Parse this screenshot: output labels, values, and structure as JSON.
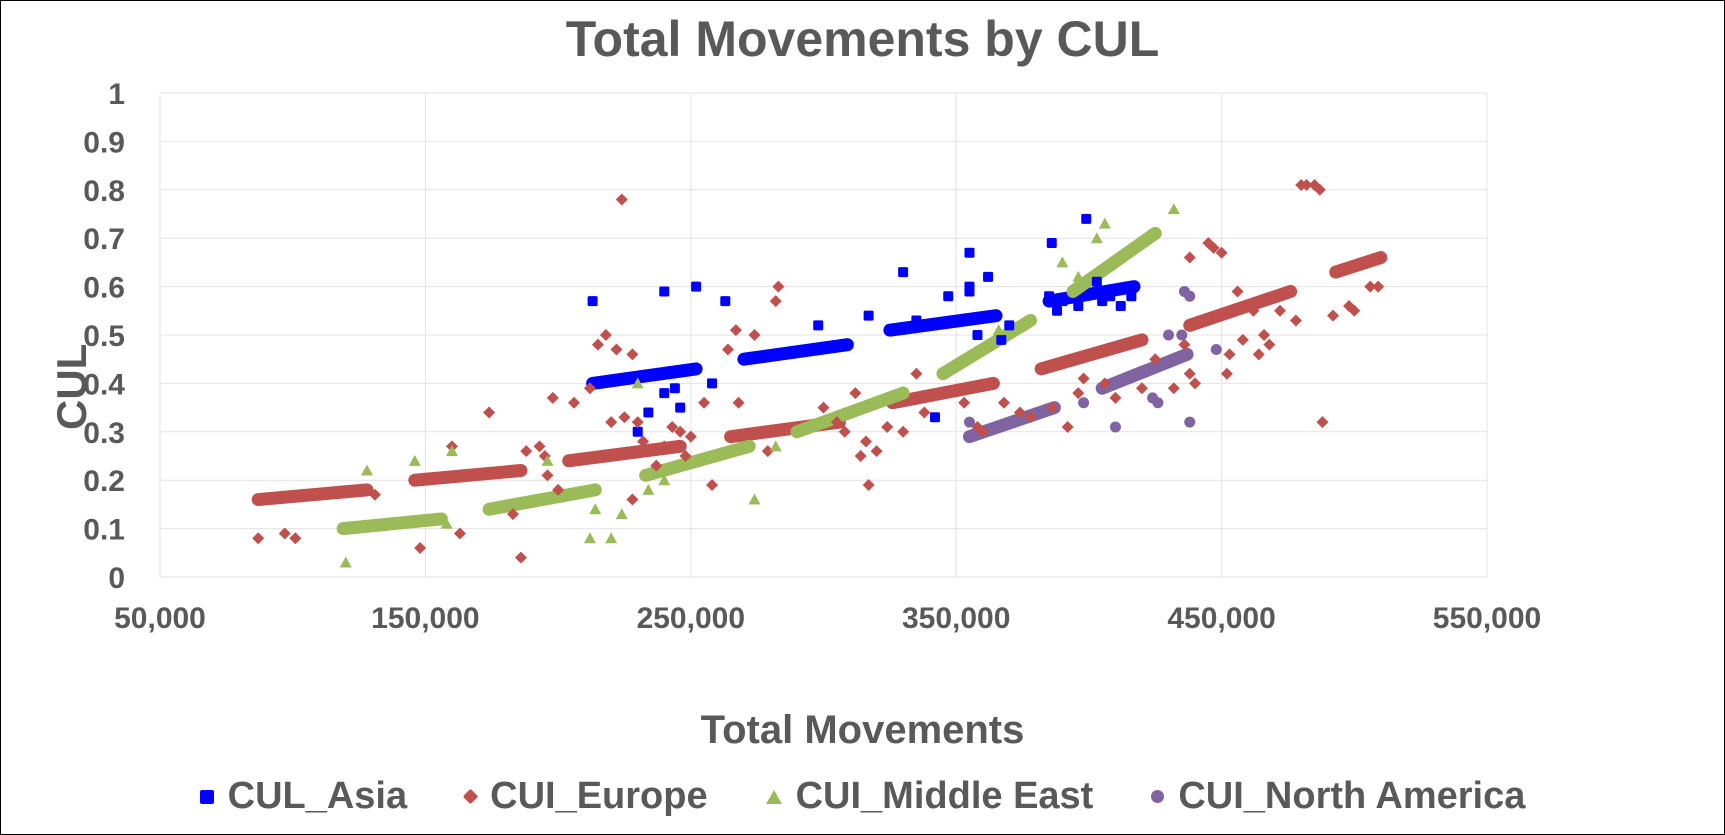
{
  "chart_data": {
    "type": "scatter",
    "title": "Total Movements by CUL",
    "xlabel": "Total Movements",
    "ylabel": "CUL",
    "xlim": [
      50000,
      550000
    ],
    "ylim": [
      0,
      1
    ],
    "x_ticks": [
      50000,
      150000,
      250000,
      350000,
      450000,
      550000
    ],
    "x_tick_labels": [
      "50,000",
      "150,000",
      "250,000",
      "350,000",
      "450,000",
      "550,000"
    ],
    "y_ticks": [
      0,
      0.1,
      0.2,
      0.3,
      0.4,
      0.5,
      0.6,
      0.7,
      0.8,
      0.9,
      1
    ],
    "y_tick_labels": [
      "0",
      "0.1",
      "0.2",
      "0.3",
      "0.4",
      "0.5",
      "0.6",
      "0.7",
      "0.8",
      "0.9",
      "1"
    ],
    "grid": true,
    "legend_position": "bottom",
    "series": [
      {
        "name": "CUL_Asia",
        "color": "#0000FF",
        "marker": "square",
        "points": [
          [
            213000,
            0.57
          ],
          [
            240000,
            0.59
          ],
          [
            252000,
            0.6
          ],
          [
            263000,
            0.57
          ],
          [
            230000,
            0.3
          ],
          [
            234000,
            0.34
          ],
          [
            240000,
            0.38
          ],
          [
            244000,
            0.39
          ],
          [
            246000,
            0.35
          ],
          [
            258000,
            0.4
          ],
          [
            298000,
            0.52
          ],
          [
            317000,
            0.54
          ],
          [
            330000,
            0.63
          ],
          [
            335000,
            0.53
          ],
          [
            342000,
            0.33
          ],
          [
            347000,
            0.58
          ],
          [
            355000,
            0.6
          ],
          [
            355000,
            0.59
          ],
          [
            355000,
            0.67
          ],
          [
            362000,
            0.62
          ],
          [
            358000,
            0.5
          ],
          [
            370000,
            0.52
          ],
          [
            367000,
            0.49
          ],
          [
            386000,
            0.69
          ],
          [
            385000,
            0.58
          ],
          [
            388000,
            0.55
          ],
          [
            390000,
            0.57
          ],
          [
            396000,
            0.56
          ],
          [
            399000,
            0.74
          ],
          [
            403000,
            0.61
          ],
          [
            405000,
            0.57
          ],
          [
            408000,
            0.58
          ],
          [
            412000,
            0.56
          ],
          [
            416000,
            0.58
          ]
        ],
        "trends": [
          [
            [
              213000,
              0.4
            ],
            [
              252000,
              0.43
            ]
          ],
          [
            [
              270000,
              0.45
            ],
            [
              309000,
              0.48
            ]
          ],
          [
            [
              325000,
              0.51
            ],
            [
              365000,
              0.54
            ]
          ],
          [
            [
              385000,
              0.57
            ],
            [
              417000,
              0.6
            ]
          ]
        ]
      },
      {
        "name": "CUI_Europe",
        "color": "#C0504D",
        "marker": "diamond",
        "points": [
          [
            87000,
            0.08
          ],
          [
            97000,
            0.09
          ],
          [
            101000,
            0.08
          ],
          [
            131000,
            0.17
          ],
          [
            148000,
            0.06
          ],
          [
            160000,
            0.27
          ],
          [
            163000,
            0.09
          ],
          [
            174000,
            0.34
          ],
          [
            183000,
            0.13
          ],
          [
            186000,
            0.04
          ],
          [
            188000,
            0.26
          ],
          [
            193000,
            0.27
          ],
          [
            195000,
            0.25
          ],
          [
            198000,
            0.37
          ],
          [
            196000,
            0.21
          ],
          [
            200000,
            0.18
          ],
          [
            206000,
            0.36
          ],
          [
            212000,
            0.39
          ],
          [
            215000,
            0.48
          ],
          [
            218000,
            0.5
          ],
          [
            220000,
            0.32
          ],
          [
            222000,
            0.47
          ],
          [
            224000,
            0.78
          ],
          [
            225000,
            0.33
          ],
          [
            228000,
            0.46
          ],
          [
            228000,
            0.16
          ],
          [
            230000,
            0.32
          ],
          [
            232000,
            0.28
          ],
          [
            237000,
            0.23
          ],
          [
            240000,
            0.27
          ],
          [
            243000,
            0.31
          ],
          [
            246000,
            0.3
          ],
          [
            248000,
            0.25
          ],
          [
            250000,
            0.29
          ],
          [
            255000,
            0.36
          ],
          [
            258000,
            0.19
          ],
          [
            264000,
            0.47
          ],
          [
            267000,
            0.51
          ],
          [
            268000,
            0.36
          ],
          [
            274000,
            0.5
          ],
          [
            279000,
            0.26
          ],
          [
            282000,
            0.57
          ],
          [
            283000,
            0.6
          ],
          [
            300000,
            0.35
          ],
          [
            305000,
            0.32
          ],
          [
            308000,
            0.3
          ],
          [
            312000,
            0.38
          ],
          [
            314000,
            0.25
          ],
          [
            316000,
            0.28
          ],
          [
            317000,
            0.19
          ],
          [
            320000,
            0.26
          ],
          [
            324000,
            0.31
          ],
          [
            330000,
            0.3
          ],
          [
            335000,
            0.42
          ],
          [
            338000,
            0.34
          ],
          [
            353000,
            0.36
          ],
          [
            358000,
            0.31
          ],
          [
            360000,
            0.3
          ],
          [
            368000,
            0.36
          ],
          [
            374000,
            0.34
          ],
          [
            378000,
            0.33
          ],
          [
            386000,
            0.35
          ],
          [
            392000,
            0.31
          ],
          [
            396000,
            0.38
          ],
          [
            398000,
            0.41
          ],
          [
            406000,
            0.4
          ],
          [
            410000,
            0.37
          ],
          [
            420000,
            0.39
          ],
          [
            425000,
            0.45
          ],
          [
            432000,
            0.39
          ],
          [
            436000,
            0.48
          ],
          [
            438000,
            0.42
          ],
          [
            438000,
            0.66
          ],
          [
            440000,
            0.4
          ],
          [
            445000,
            0.69
          ],
          [
            447000,
            0.68
          ],
          [
            450000,
            0.67
          ],
          [
            452000,
            0.42
          ],
          [
            453000,
            0.46
          ],
          [
            456000,
            0.59
          ],
          [
            458000,
            0.49
          ],
          [
            462000,
            0.55
          ],
          [
            464000,
            0.46
          ],
          [
            466000,
            0.5
          ],
          [
            468000,
            0.48
          ],
          [
            472000,
            0.55
          ],
          [
            478000,
            0.53
          ],
          [
            480000,
            0.81
          ],
          [
            482000,
            0.81
          ],
          [
            485000,
            0.81
          ],
          [
            487000,
            0.8
          ],
          [
            488000,
            0.32
          ],
          [
            492000,
            0.54
          ],
          [
            498000,
            0.56
          ],
          [
            500000,
            0.55
          ],
          [
            506000,
            0.6
          ],
          [
            509000,
            0.6
          ]
        ],
        "trends": [
          [
            [
              87000,
              0.16
            ],
            [
              128000,
              0.18
            ]
          ],
          [
            [
              146000,
              0.2
            ],
            [
              186000,
              0.22
            ]
          ],
          [
            [
              204000,
              0.24
            ],
            [
              246000,
              0.27
            ]
          ],
          [
            [
              265000,
              0.29
            ],
            [
              306000,
              0.32
            ]
          ],
          [
            [
              326000,
              0.36
            ],
            [
              364000,
              0.4
            ]
          ],
          [
            [
              382000,
              0.43
            ],
            [
              420000,
              0.49
            ]
          ],
          [
            [
              438000,
              0.52
            ],
            [
              476000,
              0.59
            ]
          ],
          [
            [
              493000,
              0.63
            ],
            [
              510000,
              0.66
            ]
          ]
        ]
      },
      {
        "name": "CUI_Middle East",
        "color": "#9BBB59",
        "marker": "triangle",
        "points": [
          [
            120000,
            0.03
          ],
          [
            128000,
            0.22
          ],
          [
            146000,
            0.24
          ],
          [
            153000,
            0.12
          ],
          [
            158000,
            0.11
          ],
          [
            160000,
            0.26
          ],
          [
            196000,
            0.24
          ],
          [
            212000,
            0.08
          ],
          [
            214000,
            0.14
          ],
          [
            220000,
            0.08
          ],
          [
            224000,
            0.13
          ],
          [
            230000,
            0.4
          ],
          [
            234000,
            0.18
          ],
          [
            240000,
            0.2
          ],
          [
            274000,
            0.16
          ],
          [
            282000,
            0.27
          ],
          [
            366000,
            0.51
          ],
          [
            390000,
            0.65
          ],
          [
            396000,
            0.62
          ],
          [
            403000,
            0.7
          ],
          [
            406000,
            0.73
          ],
          [
            432000,
            0.76
          ]
        ],
        "trends": [
          [
            [
              119000,
              0.1
            ],
            [
              156000,
              0.12
            ]
          ],
          [
            [
              174000,
              0.14
            ],
            [
              214000,
              0.18
            ]
          ],
          [
            [
              233000,
              0.21
            ],
            [
              272000,
              0.27
            ]
          ],
          [
            [
              290000,
              0.3
            ],
            [
              330000,
              0.38
            ]
          ],
          [
            [
              345000,
              0.42
            ],
            [
              378000,
              0.53
            ]
          ],
          [
            [
              394000,
              0.59
            ],
            [
              425000,
              0.71
            ]
          ]
        ]
      },
      {
        "name": "CUI_North America",
        "color": "#8064A2",
        "marker": "circle",
        "points": [
          [
            355000,
            0.32
          ],
          [
            398000,
            0.36
          ],
          [
            410000,
            0.31
          ],
          [
            424000,
            0.37
          ],
          [
            426000,
            0.36
          ],
          [
            430000,
            0.5
          ],
          [
            435000,
            0.5
          ],
          [
            438000,
            0.32
          ],
          [
            436000,
            0.59
          ],
          [
            438000,
            0.58
          ],
          [
            448000,
            0.47
          ]
        ],
        "trends": [
          [
            [
              355000,
              0.29
            ],
            [
              387000,
              0.35
            ]
          ],
          [
            [
              405000,
              0.39
            ],
            [
              437000,
              0.46
            ]
          ]
        ]
      }
    ]
  }
}
